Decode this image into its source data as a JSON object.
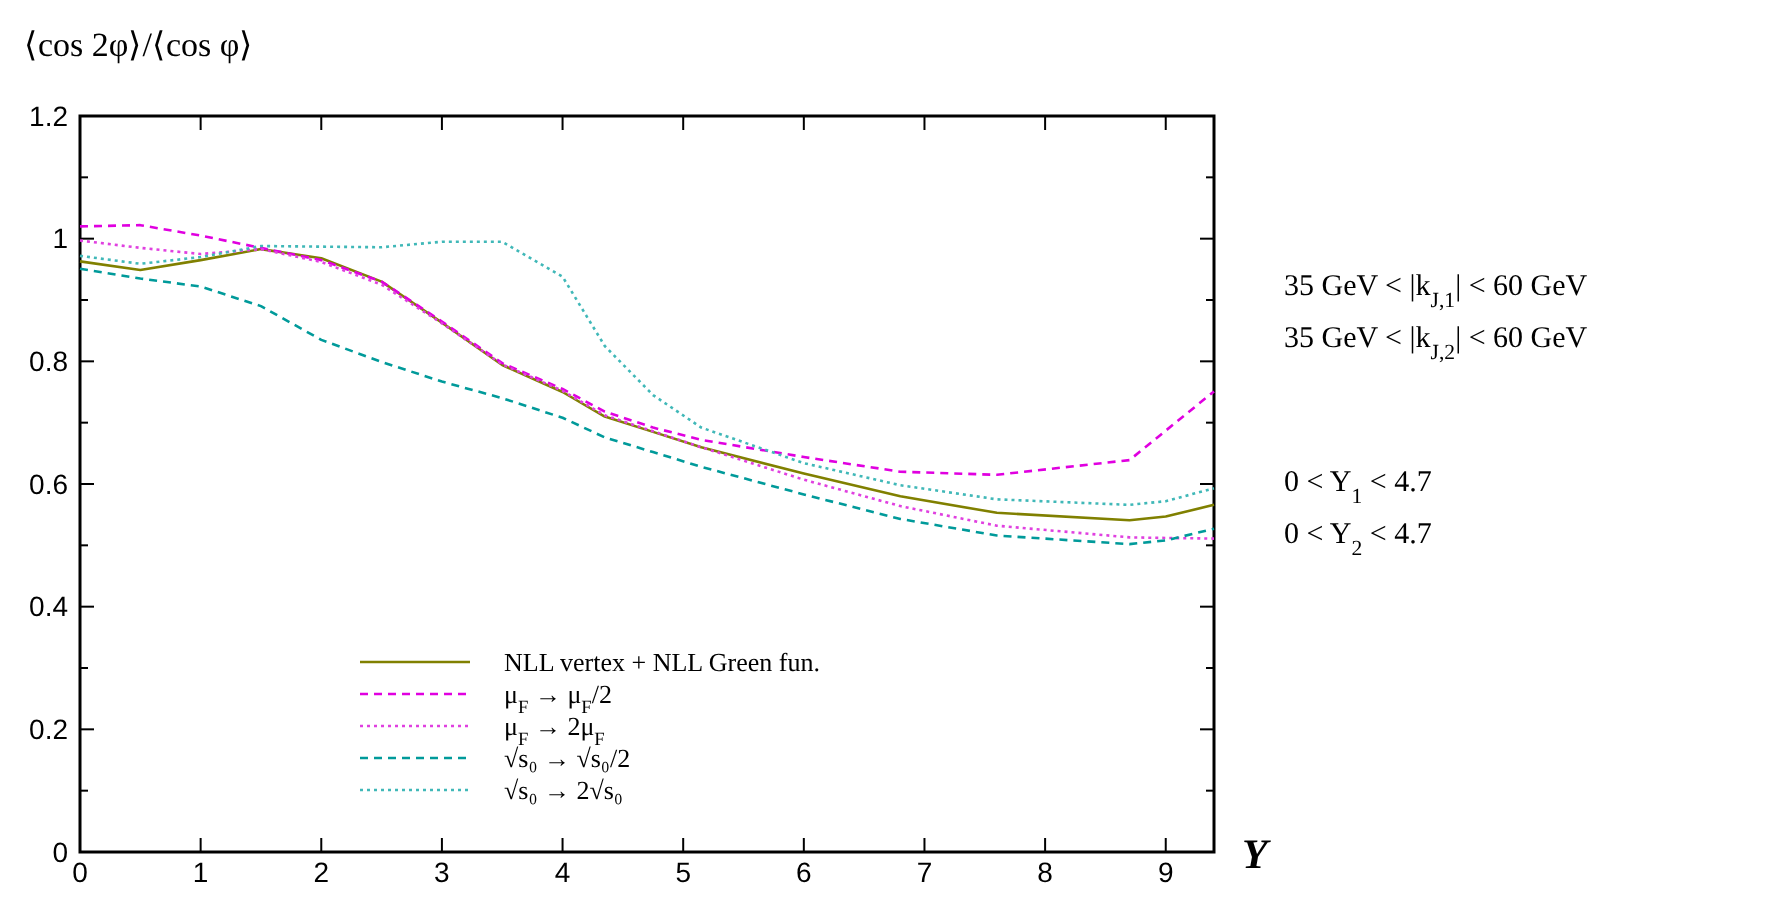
{
  "chart_data": {
    "type": "line",
    "ylabel": "⟨cos 2φ⟩/⟨cos φ⟩",
    "xlabel": "Y",
    "x": [
      0,
      0.5,
      1,
      1.5,
      2,
      2.5,
      3,
      3.5,
      4,
      4.35,
      4.75,
      5.15,
      6,
      6.8,
      7.6,
      8.7,
      9.0,
      9.4
    ],
    "series": [
      {
        "name": "NLL vertex + NLL Green fun.",
        "color": "#808000",
        "line_style": "solid",
        "values": [
          0.963,
          0.949,
          0.965,
          0.983,
          0.968,
          0.93,
          0.863,
          0.794,
          0.75,
          0.71,
          0.685,
          0.66,
          0.617,
          0.58,
          0.553,
          0.541,
          0.547,
          0.566
        ]
      },
      {
        "name": "μ$_{F}$ → μ$_{F}$/2",
        "color": "#e000e0",
        "line_style": "dashed",
        "values": [
          1.02,
          1.022,
          1.005,
          0.985,
          0.965,
          0.93,
          0.865,
          0.797,
          0.755,
          0.718,
          0.692,
          0.672,
          0.644,
          0.62,
          0.615,
          0.639,
          0.687,
          0.751
        ]
      },
      {
        "name": "μ$_{F}$ → 2μ$_{F}$",
        "color": "#e040e0",
        "line_style": "dotted",
        "values": [
          0.997,
          0.985,
          0.975,
          0.983,
          0.962,
          0.925,
          0.862,
          0.795,
          0.752,
          0.712,
          0.686,
          0.66,
          0.607,
          0.564,
          0.532,
          0.513,
          0.512,
          0.511
        ]
      },
      {
        "name": "√s₀ → √s₀/2",
        "color": "#009a9a",
        "line_style": "dashed",
        "values": [
          0.951,
          0.935,
          0.922,
          0.89,
          0.835,
          0.799,
          0.767,
          0.74,
          0.708,
          0.676,
          0.652,
          0.628,
          0.583,
          0.543,
          0.516,
          0.502,
          0.508,
          0.527
        ]
      },
      {
        "name": "√s₀ → 2√s₀",
        "color": "#40b8b8",
        "line_style": "dotted",
        "values": [
          0.972,
          0.959,
          0.97,
          0.988,
          0.987,
          0.986,
          0.995,
          0.995,
          0.938,
          0.825,
          0.745,
          0.692,
          0.634,
          0.598,
          0.575,
          0.566,
          0.572,
          0.593
        ]
      }
    ],
    "xlim": [
      0,
      9.4
    ],
    "xticks": [
      0,
      1,
      2,
      3,
      4,
      5,
      6,
      7,
      8,
      9
    ],
    "ylim": [
      0,
      1.2
    ],
    "yticks": [
      0,
      {
        "value": 0.1,
        "label": null
      },
      0.2,
      {
        "value": 0.3,
        "label": null
      },
      0.4,
      {
        "value": 0.5,
        "label": null
      },
      0.6,
      {
        "value": 0.7,
        "label": null
      },
      0.8,
      {
        "value": 0.9,
        "label": null
      },
      1,
      {
        "value": 1.1,
        "label": null
      },
      1.2
    ],
    "grid": false,
    "legend": "bottom left",
    "marker": "none",
    "annotations": [
      "35 GeV < |k$_{J,1}$| < 60 GeV",
      "35 GeV < |k$_{J,2}$| < 60 GeV",
      "0 < Y$_{1}$ < 4.7",
      "0 < Y$_{2}$ < 4.7"
    ]
  }
}
